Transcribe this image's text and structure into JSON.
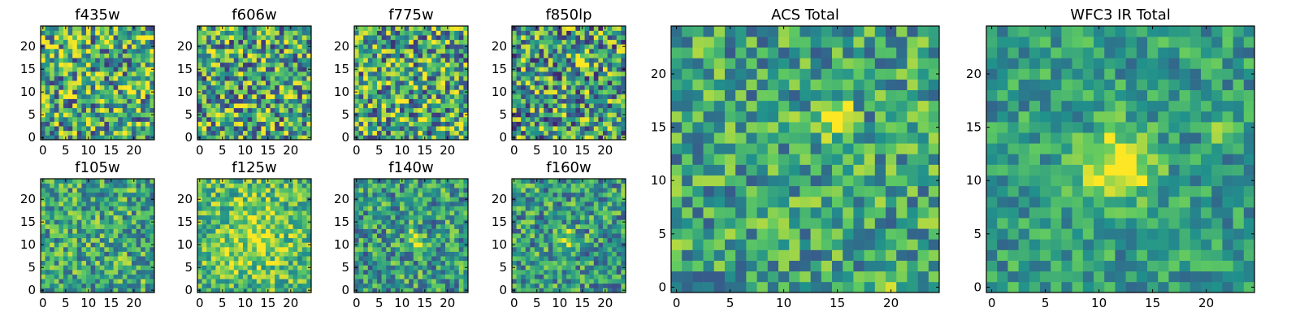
{
  "figure": {
    "background": "#ffffff"
  },
  "colormap": {
    "name": "viridis",
    "stops": [
      "#440154",
      "#3b528b",
      "#21918c",
      "#5ec962",
      "#fde725"
    ]
  },
  "chart_data": [
    {
      "type": "heatmap",
      "id": "f435w",
      "title": "f435w",
      "grid_size": 25,
      "xlim": [
        -0.5,
        24.5
      ],
      "ylim": [
        -0.5,
        24.5
      ],
      "xticks": [
        0,
        5,
        10,
        15,
        20
      ],
      "yticks": [
        0,
        5,
        10,
        15,
        20
      ],
      "xtick_labels": [
        "0",
        "5",
        "10",
        "15",
        "20"
      ],
      "ytick_labels": [
        "0",
        "5",
        "10",
        "15",
        "20"
      ],
      "seed": 11,
      "mean_level": 0.62,
      "noise": 0.45,
      "sources": []
    },
    {
      "type": "heatmap",
      "id": "f606w",
      "title": "f606w",
      "grid_size": 25,
      "xlim": [
        -0.5,
        24.5
      ],
      "ylim": [
        -0.5,
        24.5
      ],
      "xticks": [
        0,
        5,
        10,
        15,
        20
      ],
      "yticks": [
        0,
        5,
        10,
        15,
        20
      ],
      "xtick_labels": [
        "0",
        "5",
        "10",
        "15",
        "20"
      ],
      "ytick_labels": [
        "0",
        "5",
        "10",
        "15",
        "20"
      ],
      "seed": 23,
      "mean_level": 0.6,
      "noise": 0.45,
      "sources": []
    },
    {
      "type": "heatmap",
      "id": "f775w",
      "title": "f775w",
      "grid_size": 25,
      "xlim": [
        -0.5,
        24.5
      ],
      "ylim": [
        -0.5,
        24.5
      ],
      "xticks": [
        0,
        5,
        10,
        15,
        20
      ],
      "yticks": [
        0,
        5,
        10,
        15,
        20
      ],
      "xtick_labels": [
        "0",
        "5",
        "10",
        "15",
        "20"
      ],
      "ytick_labels": [
        "0",
        "5",
        "10",
        "15",
        "20"
      ],
      "seed": 37,
      "mean_level": 0.6,
      "noise": 0.45,
      "sources": []
    },
    {
      "type": "heatmap",
      "id": "f850lp",
      "title": "f850lp",
      "grid_size": 25,
      "xlim": [
        -0.5,
        24.5
      ],
      "ylim": [
        -0.5,
        24.5
      ],
      "xticks": [
        0,
        5,
        10,
        15,
        20
      ],
      "yticks": [
        0,
        5,
        10,
        15,
        20
      ],
      "xtick_labels": [
        "0",
        "5",
        "10",
        "15",
        "20"
      ],
      "ytick_labels": [
        "0",
        "5",
        "10",
        "15",
        "20"
      ],
      "seed": 41,
      "mean_level": 0.55,
      "noise": 0.45,
      "sources": [
        {
          "x": 15,
          "y": 16,
          "amp": 0.35,
          "sigma": 1.2
        }
      ]
    },
    {
      "type": "heatmap",
      "id": "f105w",
      "title": "f105w",
      "grid_size": 25,
      "xlim": [
        -0.5,
        24.5
      ],
      "ylim": [
        -0.5,
        24.5
      ],
      "xticks": [
        0,
        5,
        10,
        15,
        20
      ],
      "yticks": [
        0,
        5,
        10,
        15,
        20
      ],
      "xtick_labels": [
        "0",
        "5",
        "10",
        "15",
        "20"
      ],
      "ytick_labels": [
        "0",
        "5",
        "10",
        "15",
        "20"
      ],
      "seed": 53,
      "mean_level": 0.6,
      "noise": 0.32,
      "sources": []
    },
    {
      "type": "heatmap",
      "id": "f125w",
      "title": "f125w",
      "grid_size": 25,
      "xlim": [
        -0.5,
        24.5
      ],
      "ylim": [
        -0.5,
        24.5
      ],
      "xticks": [
        0,
        5,
        10,
        15,
        20
      ],
      "yticks": [
        0,
        5,
        10,
        15,
        20
      ],
      "xtick_labels": [
        "0",
        "5",
        "10",
        "15",
        "20"
      ],
      "ytick_labels": [
        "0",
        "5",
        "10",
        "15",
        "20"
      ],
      "seed": 67,
      "mean_level": 0.68,
      "noise": 0.28,
      "sources": [
        {
          "x": 12,
          "y": 12,
          "amp": 0.2,
          "sigma": 5.0
        }
      ]
    },
    {
      "type": "heatmap",
      "id": "f140w",
      "title": "f140w",
      "grid_size": 25,
      "xlim": [
        -0.5,
        24.5
      ],
      "ylim": [
        -0.5,
        24.5
      ],
      "xticks": [
        0,
        5,
        10,
        15,
        20
      ],
      "yticks": [
        0,
        5,
        10,
        15,
        20
      ],
      "xtick_labels": [
        "0",
        "5",
        "10",
        "15",
        "20"
      ],
      "ytick_labels": [
        "0",
        "5",
        "10",
        "15",
        "20"
      ],
      "seed": 79,
      "mean_level": 0.55,
      "noise": 0.32,
      "sources": [
        {
          "x": 13,
          "y": 11,
          "amp": 0.45,
          "sigma": 1.3
        }
      ]
    },
    {
      "type": "heatmap",
      "id": "f160w",
      "title": "f160w",
      "grid_size": 25,
      "xlim": [
        -0.5,
        24.5
      ],
      "ylim": [
        -0.5,
        24.5
      ],
      "xticks": [
        0,
        5,
        10,
        15,
        20
      ],
      "yticks": [
        0,
        5,
        10,
        15,
        20
      ],
      "xtick_labels": [
        "0",
        "5",
        "10",
        "15",
        "20"
      ],
      "ytick_labels": [
        "0",
        "5",
        "10",
        "15",
        "20"
      ],
      "seed": 83,
      "mean_level": 0.55,
      "noise": 0.32,
      "sources": [
        {
          "x": 12,
          "y": 11,
          "amp": 0.45,
          "sigma": 1.5
        }
      ]
    },
    {
      "type": "heatmap",
      "id": "acs-total",
      "title": "ACS Total",
      "grid_size": 25,
      "xlim": [
        -0.5,
        24.5
      ],
      "ylim": [
        -0.5,
        24.5
      ],
      "xticks": [
        0,
        5,
        10,
        15,
        20
      ],
      "yticks": [
        0,
        5,
        10,
        15,
        20
      ],
      "xtick_labels": [
        "0",
        "5",
        "10",
        "15",
        "20"
      ],
      "ytick_labels": [
        "0",
        "5",
        "10",
        "15",
        "20"
      ],
      "seed": 97,
      "mean_level": 0.58,
      "noise": 0.3,
      "sources": [
        {
          "x": 14.5,
          "y": 16,
          "amp": 0.5,
          "sigma": 1.2
        },
        {
          "x": 20,
          "y": 0.5,
          "amp": 0.4,
          "sigma": 0.8
        }
      ]
    },
    {
      "type": "heatmap",
      "id": "wfc3-ir-total",
      "title": "WFC3 IR Total",
      "grid_size": 25,
      "xlim": [
        -0.5,
        24.5
      ],
      "ylim": [
        -0.5,
        24.5
      ],
      "xticks": [
        0,
        5,
        10,
        15,
        20
      ],
      "yticks": [
        0,
        5,
        10,
        15,
        20
      ],
      "xtick_labels": [
        "0",
        "5",
        "10",
        "15",
        "20"
      ],
      "ytick_labels": [
        "0",
        "5",
        "10",
        "15",
        "20"
      ],
      "seed": 101,
      "mean_level": 0.55,
      "noise": 0.22,
      "sources": [
        {
          "x": 12,
          "y": 11.5,
          "amp": 0.6,
          "sigma": 2.2
        },
        {
          "x": 21,
          "y": 15,
          "amp": 0.35,
          "sigma": 0.8
        }
      ]
    }
  ]
}
